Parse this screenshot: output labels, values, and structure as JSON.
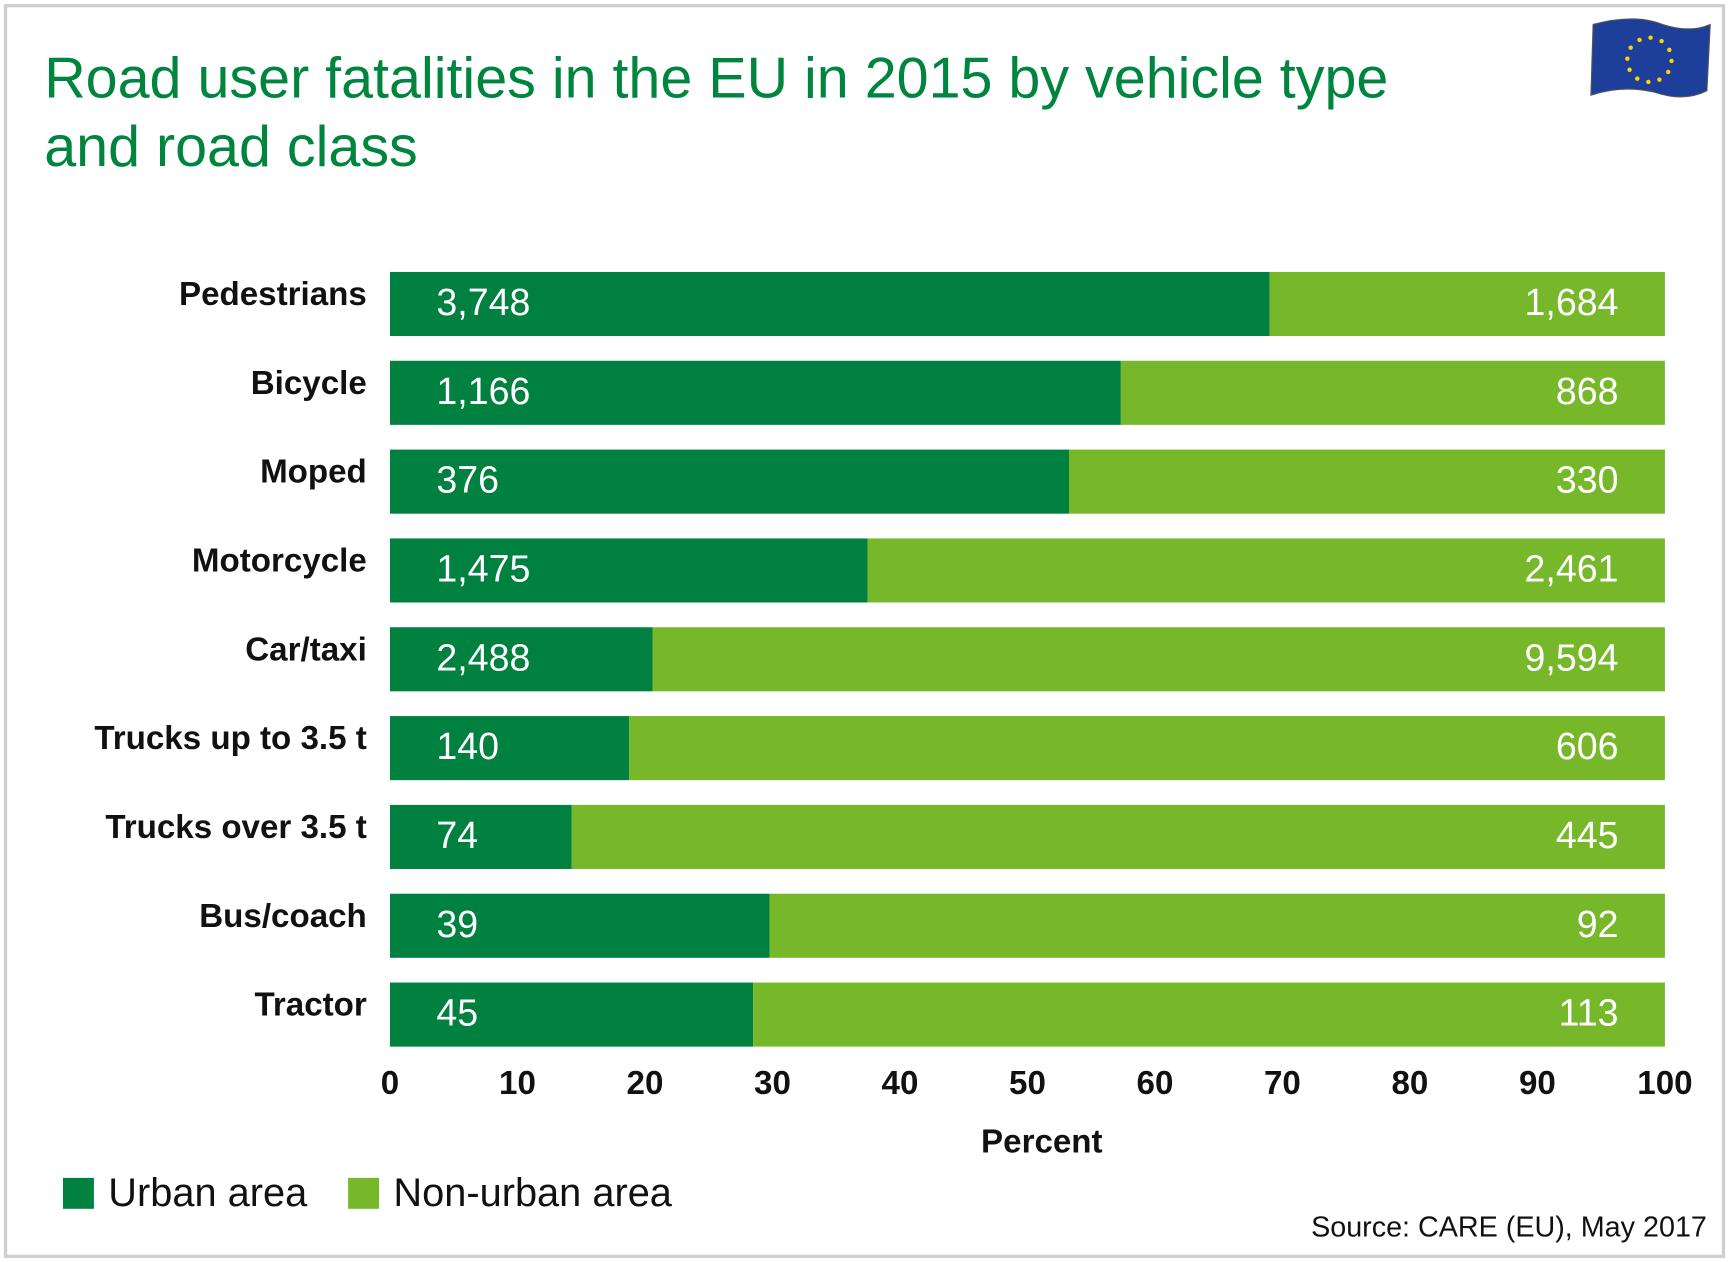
{
  "chart_data": {
    "type": "bar",
    "orientation": "horizontal",
    "stacked": "percent",
    "title": [
      "Road user fatalities in the EU in 2015 by vehicle type",
      "and road class"
    ],
    "categories": [
      "Pedestrians",
      "Bicycle",
      "Moped",
      "Motorcycle",
      "Car/taxi",
      "Trucks up to 3.5 t",
      "Trucks over 3.5 t",
      "Bus/coach",
      "Tractor"
    ],
    "series": [
      {
        "name": "Urban area",
        "color": "#00813f",
        "values": [
          3748,
          1166,
          376,
          1475,
          2488,
          140,
          74,
          39,
          45
        ],
        "value_labels": [
          "3,748",
          "1,166",
          "376",
          "1,475",
          "2,488",
          "140",
          "74",
          "39",
          "45"
        ]
      },
      {
        "name": "Non-urban area",
        "color": "#77b82a",
        "values": [
          1684,
          868,
          330,
          2461,
          9594,
          606,
          445,
          92,
          113
        ],
        "value_labels": [
          "1,684",
          "868",
          "330",
          "2,461",
          "9,594",
          "606",
          "445",
          "92",
          "113"
        ]
      }
    ],
    "xlim": [
      0,
      100
    ],
    "xticks": [
      0,
      10,
      20,
      30,
      40,
      50,
      60,
      70,
      80,
      90,
      100
    ],
    "xlabel": "Percent",
    "legend": "bottom-left",
    "source": "Source: CARE (EU), May 2017"
  }
}
